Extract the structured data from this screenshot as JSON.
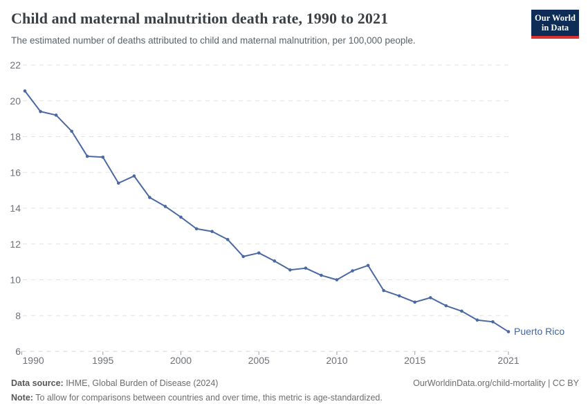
{
  "header": {
    "title": "Child and maternal malnutrition death rate, 1990 to 2021",
    "subtitle": "The estimated number of deaths attributed to child and maternal malnutrition, per 100,000 people.",
    "logo": {
      "line1": "Our World",
      "line2": "in Data",
      "bg": "#0d2d57",
      "stripe": "#dc3230"
    }
  },
  "chart_data": {
    "type": "line",
    "title": "Child and maternal malnutrition death rate, 1990 to 2021",
    "xlabel": "",
    "ylabel": "",
    "ylim": [
      6,
      22
    ],
    "yticks": [
      6,
      8,
      10,
      12,
      14,
      16,
      18,
      20,
      22
    ],
    "xticks": [
      1990,
      1995,
      2000,
      2005,
      2010,
      2015,
      2021
    ],
    "grid": true,
    "legend_position": "end-of-line-label",
    "line_color": "#4a68a2",
    "label_color": "#3d66a8",
    "series": [
      {
        "name": "Puerto Rico",
        "x": [
          1990,
          1991,
          1992,
          1993,
          1994,
          1995,
          1996,
          1997,
          1998,
          1999,
          2000,
          2001,
          2002,
          2003,
          2004,
          2005,
          2006,
          2007,
          2008,
          2009,
          2010,
          2011,
          2012,
          2013,
          2014,
          2015,
          2016,
          2017,
          2018,
          2019,
          2020,
          2021
        ],
        "values": [
          20.55,
          19.4,
          19.2,
          18.3,
          16.9,
          16.85,
          15.4,
          15.8,
          14.6,
          14.1,
          13.5,
          12.85,
          12.7,
          12.25,
          11.3,
          11.5,
          11.05,
          10.55,
          10.65,
          10.25,
          10.0,
          10.5,
          10.8,
          9.4,
          9.1,
          8.75,
          9.0,
          8.55,
          8.25,
          7.75,
          7.65,
          7.1
        ]
      }
    ]
  },
  "footer": {
    "source_label": "Data source:",
    "source_text": " IHME, Global Burden of Disease (2024)",
    "rights": "OurWorldinData.org/child-mortality | CC BY",
    "note_label": "Note:",
    "note_text": " To allow for comparisons between countries and over time, this metric is age-standardized."
  }
}
